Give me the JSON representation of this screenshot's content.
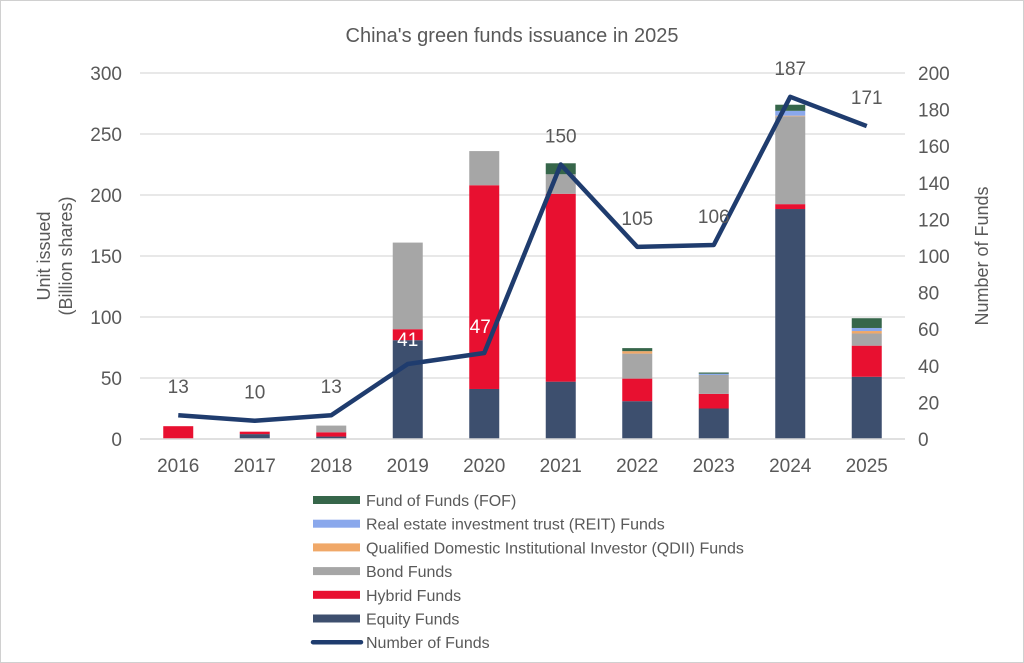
{
  "chart_data": {
    "type": "bar",
    "stacked": true,
    "title": "China's green funds issuance in 2025",
    "categories": [
      "2016",
      "2017",
      "2018",
      "2019",
      "2020",
      "2021",
      "2022",
      "2023",
      "2024",
      "2025"
    ],
    "ylabel": "Unit issued\n(Billion shares)",
    "ylabel_lines": [
      "Unit issued",
      "(Billion shares)"
    ],
    "ylim": [
      0,
      300
    ],
    "yticks": [
      0,
      50,
      100,
      150,
      200,
      250,
      300
    ],
    "y2label": "Number of Funds",
    "y2lim": [
      0,
      200
    ],
    "y2ticks": [
      0,
      20,
      40,
      60,
      80,
      100,
      120,
      140,
      160,
      180,
      200
    ],
    "grid": true,
    "legend_position": "bottom",
    "series": [
      {
        "name": "Equity Funds",
        "color": "#3d4f6e",
        "values": [
          0,
          4,
          2,
          81,
          41,
          47,
          31,
          25,
          188.5,
          51
        ]
      },
      {
        "name": "Hybrid Funds",
        "color": "#e81030",
        "values": [
          10.5,
          2,
          3.5,
          9,
          167,
          154,
          18.5,
          12,
          4,
          25.5
        ]
      },
      {
        "name": "Bond Funds",
        "color": "#a6a6a6",
        "values": [
          0,
          0,
          5.5,
          71,
          28,
          16,
          20.5,
          15.5,
          72,
          10
        ]
      },
      {
        "name": "Qualified Domestic Institutional Investor (QDII) Funds",
        "color": "#f0a868",
        "values": [
          0,
          0,
          0,
          0,
          0,
          0,
          2,
          0,
          0.5,
          2
        ]
      },
      {
        "name": "Real estate investment trust (REIT) Funds",
        "color": "#8aa8ec",
        "values": [
          0,
          0,
          0,
          0,
          0,
          0,
          0,
          1,
          4,
          2.5
        ]
      },
      {
        "name": "Fund of Funds (FOF)",
        "color": "#36664a",
        "values": [
          0,
          0,
          0,
          0,
          0,
          9,
          2.5,
          1,
          5,
          8
        ]
      }
    ],
    "line_series": {
      "name": "Number of Funds",
      "color": "#1f3c6e",
      "axis": "right",
      "values": [
        13,
        10,
        13,
        41,
        47,
        150,
        105,
        106,
        187,
        171
      ],
      "labels": [
        "13",
        "10",
        "13",
        "41",
        "47",
        "150",
        "105",
        "106",
        "187",
        "171"
      ]
    },
    "legend_order": [
      "Fund of Funds (FOF)",
      "Real estate investment trust (REIT) Funds",
      "Qualified Domestic Institutional Investor (QDII) Funds",
      "Bond Funds",
      "Hybrid Funds",
      "Equity Funds",
      "Number of Funds"
    ]
  }
}
